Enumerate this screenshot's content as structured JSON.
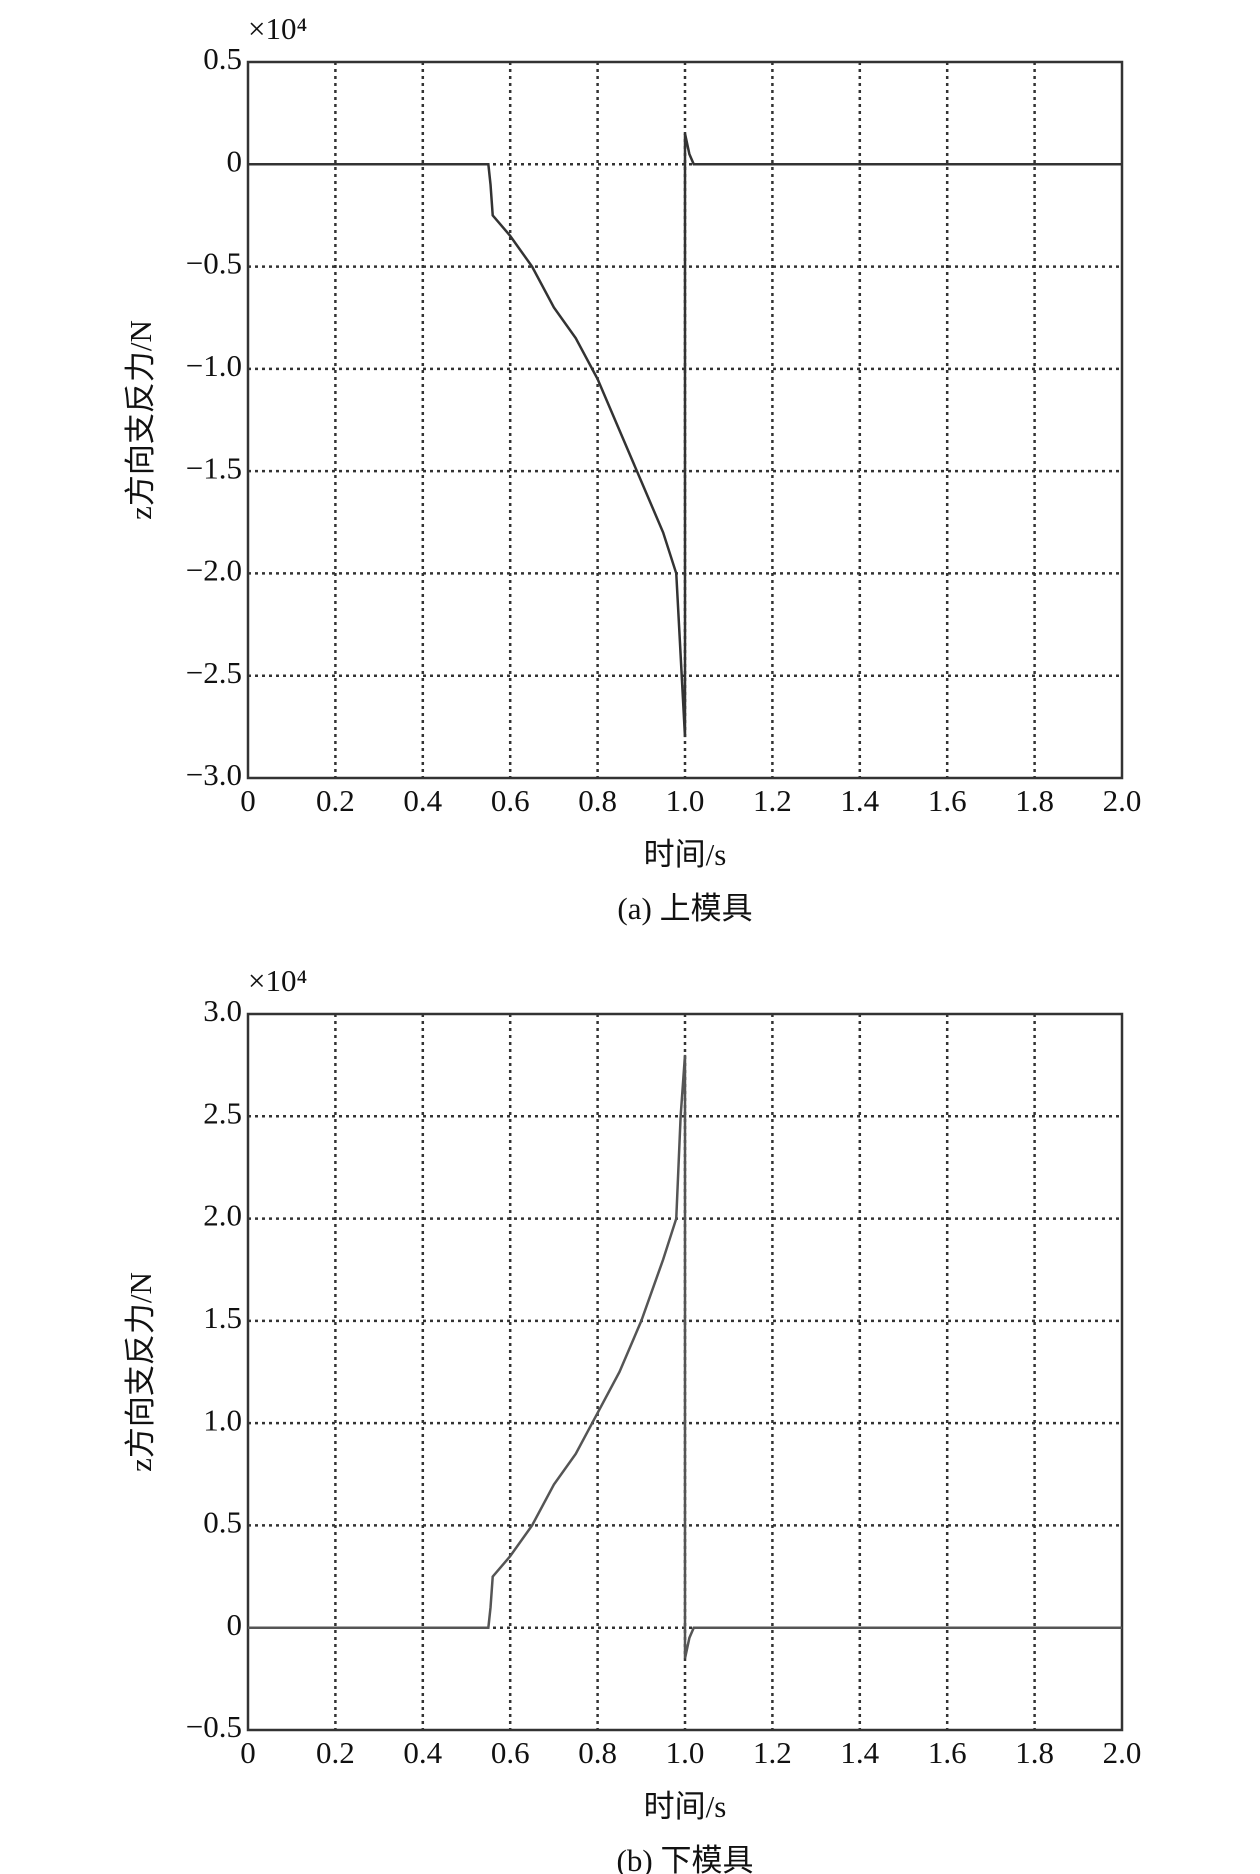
{
  "chart_data": [
    {
      "type": "line",
      "y_scale": "×10⁴",
      "xlabel": "时间/s",
      "ylabel": "z方向支反力/N",
      "caption": "(a) 上模具",
      "x": [
        0,
        0.55,
        0.555,
        0.56,
        0.6,
        0.65,
        0.7,
        0.75,
        0.8,
        0.85,
        0.9,
        0.95,
        0.98,
        0.99,
        1.0,
        1.0,
        1.01,
        1.02,
        2.0
      ],
      "series": [
        {
          "name": "z方向支反力",
          "color": "#333333",
          "values": [
            0,
            0,
            -0.1,
            -0.25,
            -0.35,
            -0.5,
            -0.7,
            -0.85,
            -1.05,
            -1.3,
            -1.55,
            -1.8,
            -2.0,
            -2.4,
            -2.8,
            0.15,
            0.05,
            0,
            0
          ]
        }
      ],
      "xlim": [
        0,
        2.0
      ],
      "xticks": [
        0,
        0.2,
        0.4,
        0.6,
        0.8,
        {
          "value": 1.0,
          "label": "1.0"
        },
        1.2,
        1.4,
        1.6,
        1.8,
        {
          "value": 2.0,
          "label": "2.0"
        }
      ],
      "ylim": [
        -3.0,
        0.5
      ],
      "yticks": [
        {
          "value": -3.0,
          "label": "−3.0"
        },
        {
          "value": -2.5,
          "label": "−2.5"
        },
        {
          "value": -2.0,
          "label": "−2.0"
        },
        {
          "value": -1.5,
          "label": "−1.5"
        },
        {
          "value": -1.0,
          "label": "−1.0"
        },
        {
          "value": -0.5,
          "label": "−0.5"
        },
        0,
        0.5
      ],
      "grid": true
    },
    {
      "type": "line",
      "y_scale": "×10⁴",
      "xlabel": "时间/s",
      "ylabel": "z方向支反力/N",
      "caption": "(b) 下模具",
      "x": [
        0,
        0.55,
        0.555,
        0.56,
        0.6,
        0.65,
        0.7,
        0.75,
        0.8,
        0.85,
        0.9,
        0.95,
        0.98,
        0.99,
        1.0,
        1.0,
        1.01,
        1.02,
        2.0
      ],
      "series": [
        {
          "name": "z方向支反力",
          "color": "#555555",
          "values": [
            0,
            0,
            0.1,
            0.25,
            0.35,
            0.5,
            0.7,
            0.85,
            1.05,
            1.25,
            1.5,
            1.8,
            2.0,
            2.5,
            2.8,
            -0.15,
            -0.05,
            0,
            0
          ]
        }
      ],
      "xlim": [
        0,
        2.0
      ],
      "xticks": [
        0,
        0.2,
        0.4,
        0.6,
        0.8,
        {
          "value": 1.0,
          "label": "1.0"
        },
        1.2,
        1.4,
        1.6,
        1.8,
        {
          "value": 2.0,
          "label": "2.0"
        }
      ],
      "ylim": [
        -0.5,
        3.0
      ],
      "yticks": [
        {
          "value": -0.5,
          "label": "−0.5"
        },
        0,
        0.5,
        {
          "value": 1.0,
          "label": "1.0"
        },
        1.5,
        {
          "value": 2.0,
          "label": "2.0"
        },
        2.5,
        {
          "value": 3.0,
          "label": "3.0"
        }
      ],
      "grid": true
    }
  ]
}
